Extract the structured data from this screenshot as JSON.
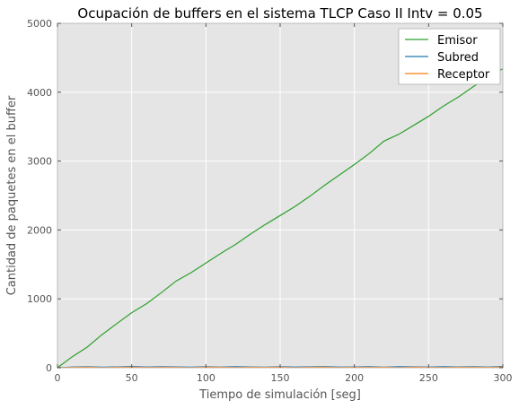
{
  "chart_data": {
    "type": "line",
    "title": "Ocupación de buffers en el sistema TLCP Caso II Intv = 0.05",
    "xlabel": "Tiempo de simulación [seg]",
    "ylabel": "Cantidad de paquetes en el buffer",
    "xlim": [
      0,
      300
    ],
    "ylim": [
      0,
      5000
    ],
    "xticks": [
      0,
      50,
      100,
      150,
      200,
      250,
      300
    ],
    "yticks": [
      0,
      1000,
      2000,
      3000,
      4000,
      5000
    ],
    "grid": true,
    "legend_position": "top-right",
    "series": [
      {
        "name": "Emisor",
        "color": "#2ca02c",
        "x": [
          0,
          10,
          20,
          30,
          40,
          50,
          60,
          70,
          80,
          90,
          100,
          110,
          120,
          130,
          140,
          150,
          160,
          170,
          180,
          190,
          200,
          210,
          220,
          230,
          240,
          250,
          260,
          270,
          280,
          290,
          300
        ],
        "y": [
          0,
          160,
          300,
          480,
          640,
          800,
          930,
          1090,
          1260,
          1380,
          1520,
          1660,
          1790,
          1940,
          2080,
          2210,
          2340,
          2490,
          2650,
          2800,
          2950,
          3110,
          3290,
          3390,
          3520,
          3650,
          3800,
          3930,
          4080,
          4220,
          4340
        ]
      },
      {
        "name": "Subred",
        "color": "#1f77b4",
        "x": [
          0,
          10,
          20,
          30,
          40,
          50,
          60,
          70,
          80,
          90,
          100,
          110,
          120,
          130,
          140,
          150,
          160,
          170,
          180,
          190,
          200,
          210,
          220,
          230,
          240,
          250,
          260,
          270,
          280,
          290,
          300
        ],
        "y": [
          0,
          10,
          15,
          8,
          12,
          18,
          10,
          15,
          12,
          8,
          14,
          10,
          16,
          12,
          9,
          15,
          11,
          13,
          17,
          10,
          12,
          14,
          9,
          15,
          13,
          10,
          16,
          12,
          14,
          11,
          18
        ]
      },
      {
        "name": "Receptor",
        "color": "#ff7f0e",
        "x": [
          0,
          10,
          20,
          30,
          40,
          50,
          60,
          70,
          80,
          90,
          100,
          110,
          120,
          130,
          140,
          150,
          160,
          170,
          180,
          190,
          200,
          210,
          220,
          230,
          240,
          250,
          260,
          270,
          280,
          290,
          300
        ],
        "y": [
          0,
          5,
          8,
          3,
          6,
          9,
          4,
          7,
          5,
          3,
          8,
          6,
          4,
          7,
          5,
          9,
          3,
          6,
          8,
          4,
          7,
          5,
          6,
          3,
          8,
          5,
          4,
          7,
          6,
          5,
          9
        ]
      }
    ]
  }
}
